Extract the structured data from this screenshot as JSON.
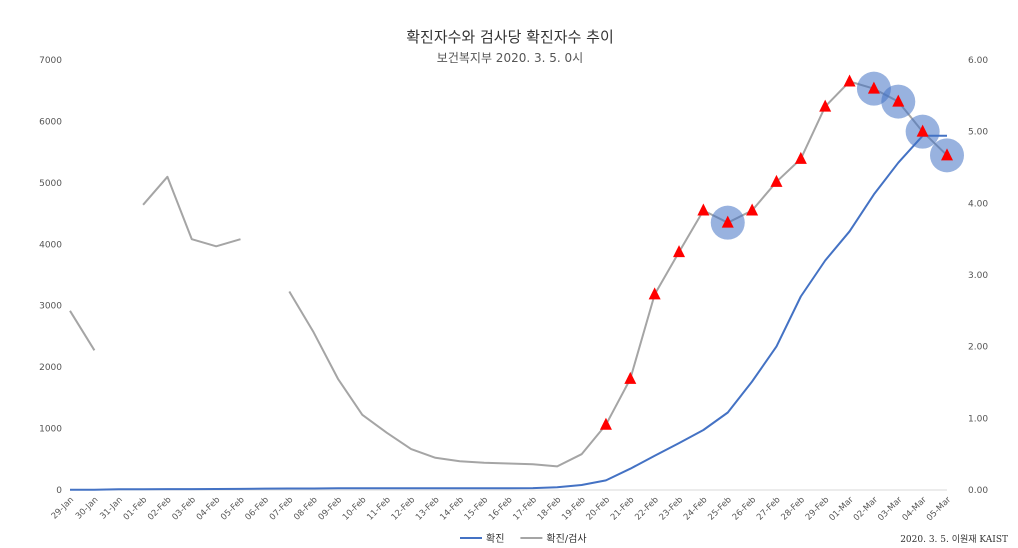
{
  "chart_data": {
    "type": "line",
    "title": "확진자수와 검사당 확진자수 추이",
    "subtitle": "보건복지부 2020. 3. 5. 0시",
    "credit": "2020. 3. 5. 이원재 KAIST",
    "categories": [
      "29-Jan",
      "30-Jan",
      "31-Jan",
      "01-Feb",
      "02-Feb",
      "03-Feb",
      "04-Feb",
      "05-Feb",
      "06-Feb",
      "07-Feb",
      "08-Feb",
      "09-Feb",
      "10-Feb",
      "11-Feb",
      "12-Feb",
      "13-Feb",
      "14-Feb",
      "15-Feb",
      "16-Feb",
      "17-Feb",
      "18-Feb",
      "19-Feb",
      "20-Feb",
      "21-Feb",
      "22-Feb",
      "23-Feb",
      "24-Feb",
      "25-Feb",
      "26-Feb",
      "27-Feb",
      "28-Feb",
      "29-Feb",
      "01-Mar",
      "02-Mar",
      "03-Mar",
      "04-Mar",
      "05-Mar"
    ],
    "y_left": {
      "ylim": [
        0,
        7000
      ],
      "ticks": [
        "0",
        "1000",
        "2000",
        "3000",
        "4000",
        "5000",
        "6000",
        "7000"
      ]
    },
    "y_right": {
      "ylim": [
        0,
        6
      ],
      "ticks": [
        "0.00",
        "1.00",
        "2.00",
        "3.00",
        "4.00",
        "5.00",
        "6.00"
      ]
    },
    "series": [
      {
        "name": "확진",
        "axis": "left",
        "color": "#4472c4",
        "values": [
          4,
          4,
          11,
          12,
          15,
          15,
          16,
          18,
          23,
          24,
          24,
          27,
          27,
          28,
          28,
          28,
          28,
          29,
          30,
          31,
          46,
          82,
          156,
          346,
          556,
          763,
          977,
          1261,
          1766,
          2337,
          3150,
          3736,
          4212,
          4812,
          5328,
          5766,
          5766
        ]
      },
      {
        "name": "확진/검사",
        "axis": "right",
        "color": "#a5a5a5",
        "values": [
          2.5,
          1.95,
          null,
          3.98,
          4.37,
          3.5,
          3.4,
          3.5,
          null,
          2.77,
          2.2,
          1.55,
          1.05,
          0.8,
          0.57,
          0.45,
          0.4,
          0.38,
          0.37,
          0.36,
          0.33,
          0.5,
          0.91,
          1.55,
          2.73,
          3.32,
          3.9,
          3.73,
          3.9,
          4.3,
          4.62,
          5.35,
          5.7,
          5.6,
          5.42,
          5.0,
          4.67
        ]
      }
    ],
    "markers": {
      "shape": "triangle",
      "color": "#ff0000",
      "series": "확진/검사",
      "from_index": 22
    },
    "highlights": {
      "color": "#4472c4",
      "indices": [
        27,
        33,
        34,
        35,
        36
      ]
    },
    "legend": {
      "position": "bottom",
      "items": [
        "확진",
        "확진/검사"
      ]
    },
    "grid": false
  }
}
